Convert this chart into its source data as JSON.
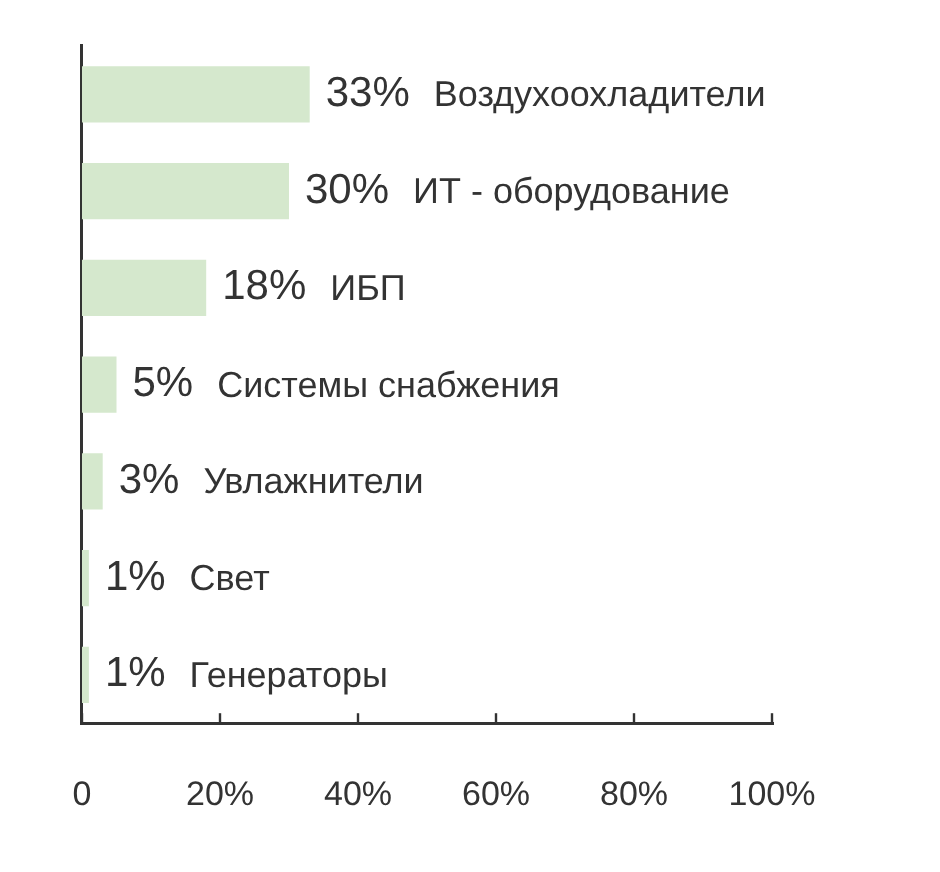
{
  "chart_data": {
    "type": "bar",
    "orientation": "horizontal",
    "categories": [
      "Воздухоохладители",
      "ИТ - оборудование",
      "ИБП",
      "Системы снабжения",
      "Увлажнители",
      "Свет",
      "Генераторы"
    ],
    "values": [
      33,
      30,
      18,
      5,
      3,
      1,
      1
    ],
    "value_labels": [
      "33%",
      "30%",
      "18%",
      "5%",
      "3%",
      "1%",
      "1%"
    ],
    "color": "#d5e8cd",
    "xlim": [
      0,
      100
    ],
    "xticks": [
      0,
      {
        "value": 20,
        "label": "20%"
      },
      {
        "value": 40,
        "label": "40%"
      },
      {
        "value": 60,
        "label": "60%"
      },
      {
        "value": 80,
        "label": "80%"
      },
      {
        "value": 100,
        "label": "100%"
      }
    ],
    "tick_labels": "x"
  }
}
